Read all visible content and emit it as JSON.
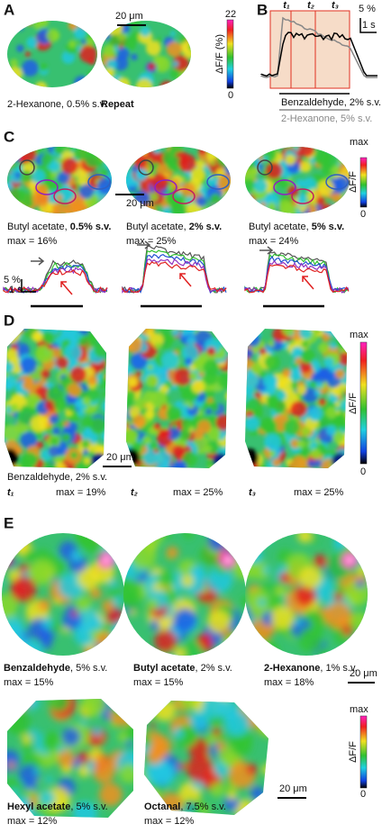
{
  "panel_a": {
    "label": "A",
    "scale": "20 μm",
    "colorbar": {
      "max": "22",
      "min": "0",
      "title": "ΔF/F (%)"
    },
    "captions": [
      "2-Hexanone, 0.5% s.v.",
      "Repeat"
    ]
  },
  "panel_b": {
    "label": "B",
    "times": [
      "t₁",
      "t₂",
      "t₃"
    ],
    "scale_y": "5 %",
    "scale_x": "1 s",
    "stimuli": [
      "Benzaldehyde, 2% s.v.",
      "2-Hexanone, 5% s.v."
    ]
  },
  "panel_c": {
    "label": "C",
    "colorbar": {
      "max": "max",
      "min": "0",
      "title": "ΔF/F"
    },
    "scale": "20 μm",
    "maps": [
      {
        "odor": "Butyl acetate, ",
        "conc": "0.5% s.v.",
        "max": "max = 16%"
      },
      {
        "odor": "Butyl acetate, ",
        "conc": "2% s.v.",
        "max": "max = 25%"
      },
      {
        "odor": "Butyl acetate, ",
        "conc": "5% s.v.",
        "max": "max = 24%"
      }
    ],
    "scale_y": "5 %",
    "scale_x": "1 s"
  },
  "panel_d": {
    "label": "D",
    "colorbar": {
      "max": "max",
      "min": "0",
      "title": "ΔF/F"
    },
    "scale": "20 μm",
    "odor": "Benzaldehyde, 2% s.v.",
    "maps": [
      {
        "t": "t₁",
        "max": "max = 19%"
      },
      {
        "t": "t₂",
        "max": "max = 25%"
      },
      {
        "t": "t₃",
        "max": "max = 25%"
      }
    ]
  },
  "panel_e": {
    "label": "E",
    "colorbar": {
      "max": "max",
      "min": "0",
      "title": "ΔF/F"
    },
    "scales": [
      "20 μm",
      "20 μm"
    ],
    "maps": [
      {
        "odor": "Benzaldehyde",
        "conc": ", 5% s.v.",
        "max": "max = 15%"
      },
      {
        "odor": "Butyl acetate",
        "conc": ", 2% s.v.",
        "max": "max = 15%"
      },
      {
        "odor": "2-Hexanone",
        "conc": ", 1% s.v.",
        "max": "max = 18%"
      },
      {
        "odor": "Hexyl acetate",
        "conc": ", 5% s.v.",
        "max": "max = 12%"
      },
      {
        "odor": "Octanal",
        "conc": ", 7.5% s.v.",
        "max": "max = 12%"
      }
    ]
  }
}
